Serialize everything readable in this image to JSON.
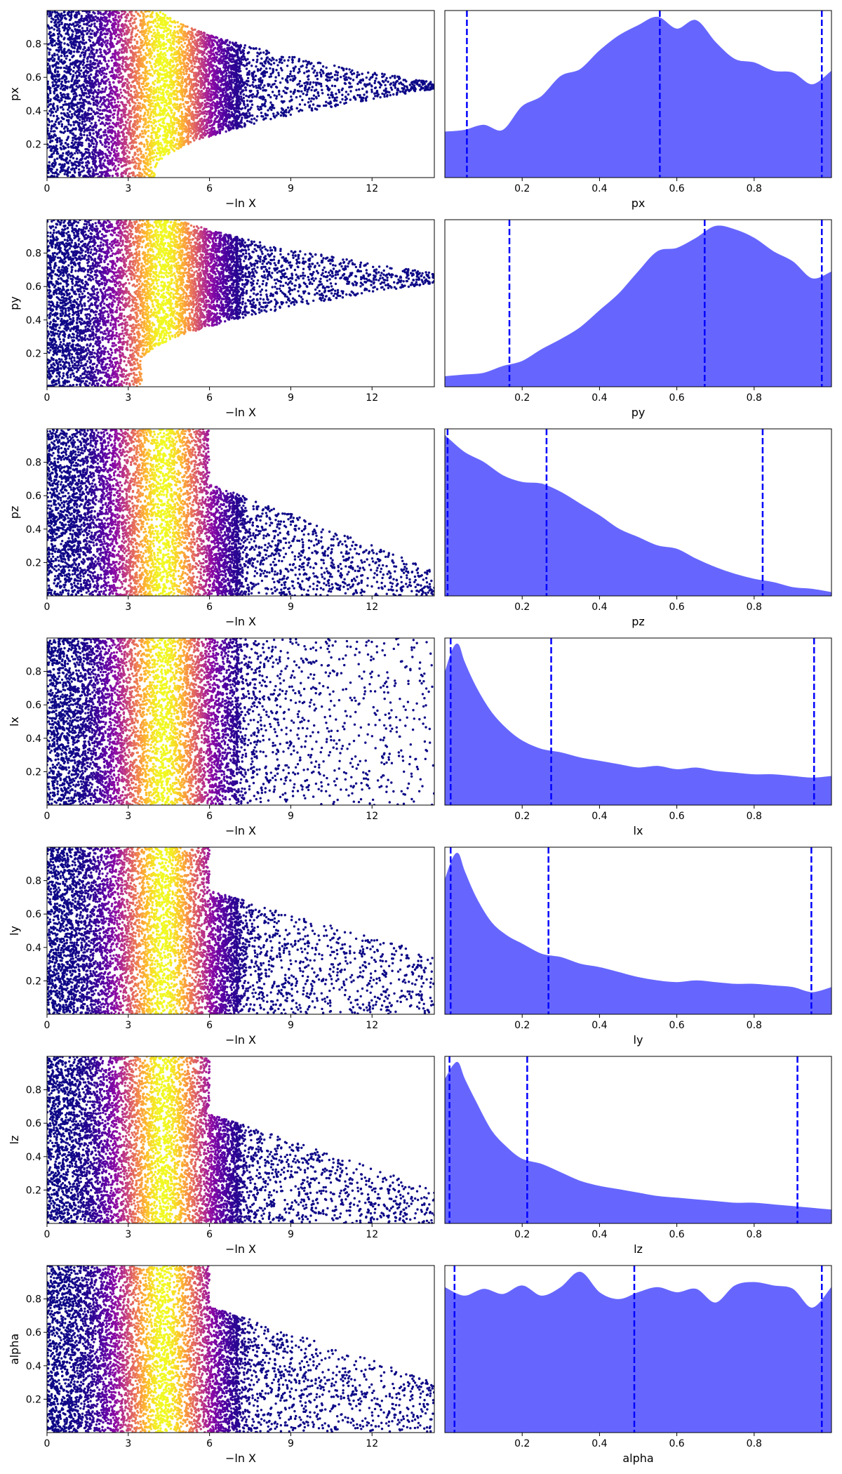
{
  "chart_data": [
    {
      "type": "scatter",
      "param": "px",
      "xlabel": "−ln X",
      "ylabel": "px",
      "xlim": [
        0,
        14.3
      ],
      "ylim": [
        0,
        1
      ],
      "xticks": [
        0,
        3,
        6,
        9,
        12
      ],
      "xtick_labels": [
        "0",
        "3",
        "6",
        "9",
        "12"
      ],
      "yticks": [
        0.2,
        0.4,
        0.6,
        0.8
      ],
      "ytick_labels": [
        "0.2",
        "0.4",
        "0.6",
        "0.8"
      ],
      "colormap": "plasma",
      "approx_point_count": 7000,
      "peak_color_at_x": 4.3,
      "x_extent_max": 14.3,
      "contraction": {
        "start_x": 4.0,
        "center": 0.55,
        "end_halfwidth": 0.02
      }
    },
    {
      "type": "area",
      "param": "px",
      "xlabel": "px",
      "ylabel": "",
      "xlim": [
        0,
        1
      ],
      "xticks": [
        0.2,
        0.4,
        0.6,
        0.8
      ],
      "xtick_labels": [
        "0.2",
        "0.4",
        "0.6",
        "0.8"
      ],
      "x": [
        0,
        0.05,
        0.1,
        0.15,
        0.2,
        0.25,
        0.3,
        0.35,
        0.4,
        0.45,
        0.5,
        0.55,
        0.6,
        0.65,
        0.7,
        0.75,
        0.8,
        0.85,
        0.9,
        0.95,
        1.0
      ],
      "density": [
        0.27,
        0.28,
        0.31,
        0.28,
        0.42,
        0.48,
        0.6,
        0.64,
        0.75,
        0.84,
        0.9,
        0.95,
        0.88,
        0.93,
        0.8,
        0.7,
        0.68,
        0.63,
        0.62,
        0.55,
        0.63
      ],
      "quantiles": [
        0.057,
        0.556,
        0.975
      ],
      "fill_color": "#6666ff",
      "line_color": "#0000ff"
    },
    {
      "type": "scatter",
      "param": "py",
      "xlabel": "−ln X",
      "ylabel": "py",
      "xlim": [
        0,
        14.3
      ],
      "ylim": [
        0,
        1
      ],
      "xticks": [
        0,
        3,
        6,
        9,
        12
      ],
      "xtick_labels": [
        "0",
        "3",
        "6",
        "9",
        "12"
      ],
      "yticks": [
        0.2,
        0.4,
        0.6,
        0.8
      ],
      "ytick_labels": [
        "0.2",
        "0.4",
        "0.6",
        "0.8"
      ],
      "colormap": "plasma",
      "approx_point_count": 7000,
      "peak_color_at_x": 4.3,
      "x_extent_max": 14.3,
      "contraction": {
        "start_x": 3.5,
        "center": 0.65,
        "end_halfwidth": 0.03
      }
    },
    {
      "type": "area",
      "param": "py",
      "xlabel": "py",
      "ylabel": "",
      "xlim": [
        0,
        1
      ],
      "xticks": [
        0.2,
        0.4,
        0.6,
        0.8
      ],
      "xtick_labels": [
        "0.2",
        "0.4",
        "0.6",
        "0.8"
      ],
      "x": [
        0,
        0.05,
        0.1,
        0.15,
        0.2,
        0.25,
        0.3,
        0.35,
        0.4,
        0.45,
        0.5,
        0.55,
        0.6,
        0.65,
        0.7,
        0.75,
        0.8,
        0.85,
        0.9,
        0.95,
        1.0
      ],
      "density": [
        0.06,
        0.07,
        0.08,
        0.12,
        0.15,
        0.22,
        0.28,
        0.35,
        0.45,
        0.55,
        0.68,
        0.8,
        0.82,
        0.88,
        0.95,
        0.93,
        0.88,
        0.8,
        0.74,
        0.64,
        0.68
      ],
      "quantiles": [
        0.167,
        0.672,
        0.975
      ],
      "fill_color": "#6666ff",
      "line_color": "#0000ff"
    },
    {
      "type": "scatter",
      "param": "pz",
      "xlabel": "−ln X",
      "ylabel": "pz",
      "xlim": [
        0,
        14.3
      ],
      "ylim": [
        0,
        1
      ],
      "xticks": [
        0,
        3,
        6,
        9,
        12
      ],
      "xtick_labels": [
        "0",
        "3",
        "6",
        "9",
        "12"
      ],
      "yticks": [
        0.2,
        0.4,
        0.6,
        0.8
      ],
      "ytick_labels": [
        "0.2",
        "0.4",
        "0.6",
        "0.8"
      ],
      "colormap": "plasma",
      "approx_point_count": 7000,
      "peak_color_at_x": 4.3,
      "x_extent_max": 14.3,
      "sparse_y_max_start": 0.95,
      "sparse_y_max_end": 0.15
    },
    {
      "type": "area",
      "param": "pz",
      "xlabel": "pz",
      "ylabel": "",
      "xlim": [
        0,
        1
      ],
      "xticks": [
        0.2,
        0.4,
        0.6,
        0.8
      ],
      "xtick_labels": [
        "0.2",
        "0.4",
        "0.6",
        "0.8"
      ],
      "x": [
        0,
        0.05,
        0.1,
        0.15,
        0.2,
        0.25,
        0.3,
        0.35,
        0.4,
        0.45,
        0.5,
        0.55,
        0.6,
        0.65,
        0.7,
        0.75,
        0.8,
        0.85,
        0.9,
        0.95,
        1.0
      ],
      "density": [
        0.96,
        0.86,
        0.8,
        0.72,
        0.68,
        0.67,
        0.62,
        0.55,
        0.48,
        0.4,
        0.35,
        0.3,
        0.28,
        0.22,
        0.17,
        0.13,
        0.1,
        0.08,
        0.05,
        0.04,
        0.02
      ],
      "quantiles": [
        0.007,
        0.263,
        0.822
      ],
      "fill_color": "#6666ff",
      "line_color": "#0000ff"
    },
    {
      "type": "scatter",
      "param": "lx",
      "xlabel": "−ln X",
      "ylabel": "lx",
      "xlim": [
        0,
        14.3
      ],
      "ylim": [
        0,
        1
      ],
      "xticks": [
        0,
        3,
        6,
        9,
        12
      ],
      "xtick_labels": [
        "0",
        "3",
        "6",
        "9",
        "12"
      ],
      "yticks": [
        0.2,
        0.4,
        0.6,
        0.8
      ],
      "ytick_labels": [
        "0.2",
        "0.4",
        "0.6",
        "0.8"
      ],
      "colormap": "plasma",
      "approx_point_count": 7000,
      "peak_color_at_x": 4.3,
      "x_extent_max": 14.3,
      "sparse_y_max_start": 1.0,
      "sparse_y_max_end": 1.0
    },
    {
      "type": "area",
      "param": "lx",
      "xlabel": "lx",
      "ylabel": "",
      "xlim": [
        0,
        1
      ],
      "xticks": [
        0.2,
        0.4,
        0.6,
        0.8
      ],
      "xtick_labels": [
        "0.2",
        "0.4",
        "0.6",
        "0.8"
      ],
      "x": [
        0,
        0.02,
        0.035,
        0.05,
        0.08,
        0.12,
        0.16,
        0.2,
        0.25,
        0.3,
        0.35,
        0.4,
        0.45,
        0.5,
        0.55,
        0.6,
        0.65,
        0.7,
        0.75,
        0.8,
        0.85,
        0.9,
        0.95,
        1.0
      ],
      "density": [
        0.78,
        0.92,
        0.95,
        0.85,
        0.7,
        0.55,
        0.45,
        0.38,
        0.33,
        0.31,
        0.28,
        0.26,
        0.24,
        0.22,
        0.23,
        0.21,
        0.22,
        0.2,
        0.19,
        0.18,
        0.18,
        0.17,
        0.16,
        0.17
      ],
      "quantiles": [
        0.015,
        0.275,
        0.955
      ],
      "fill_color": "#6666ff",
      "line_color": "#0000ff"
    },
    {
      "type": "scatter",
      "param": "ly",
      "xlabel": "−ln X",
      "ylabel": "ly",
      "xlim": [
        0,
        14.3
      ],
      "ylim": [
        0,
        1
      ],
      "xticks": [
        0,
        3,
        6,
        9,
        12
      ],
      "xtick_labels": [
        "0",
        "3",
        "6",
        "9",
        "12"
      ],
      "yticks": [
        0.2,
        0.4,
        0.6,
        0.8
      ],
      "ytick_labels": [
        "0.2",
        "0.4",
        "0.6",
        "0.8"
      ],
      "colormap": "plasma",
      "approx_point_count": 7000,
      "peak_color_at_x": 4.3,
      "x_extent_max": 14.3,
      "sparse_y_max_start": 0.95,
      "sparse_y_max_end": 0.35
    },
    {
      "type": "area",
      "param": "ly",
      "xlabel": "ly",
      "ylabel": "",
      "xlim": [
        0,
        1
      ],
      "xticks": [
        0.2,
        0.4,
        0.6,
        0.8
      ],
      "xtick_labels": [
        "0.2",
        "0.4",
        "0.6",
        "0.8"
      ],
      "x": [
        0,
        0.02,
        0.035,
        0.05,
        0.08,
        0.12,
        0.16,
        0.2,
        0.25,
        0.3,
        0.35,
        0.4,
        0.45,
        0.5,
        0.55,
        0.6,
        0.65,
        0.7,
        0.75,
        0.8,
        0.85,
        0.9,
        0.95,
        1.0
      ],
      "density": [
        0.8,
        0.93,
        0.96,
        0.86,
        0.7,
        0.55,
        0.47,
        0.42,
        0.36,
        0.34,
        0.3,
        0.28,
        0.25,
        0.22,
        0.2,
        0.19,
        0.2,
        0.19,
        0.18,
        0.18,
        0.17,
        0.16,
        0.13,
        0.16
      ],
      "quantiles": [
        0.015,
        0.268,
        0.948
      ],
      "fill_color": "#6666ff",
      "line_color": "#0000ff"
    },
    {
      "type": "scatter",
      "param": "lz",
      "xlabel": "−ln X",
      "ylabel": "lz",
      "xlim": [
        0,
        14.3
      ],
      "ylim": [
        0,
        1
      ],
      "xticks": [
        0,
        3,
        6,
        9,
        12
      ],
      "xtick_labels": [
        "0",
        "3",
        "6",
        "9",
        "12"
      ],
      "yticks": [
        0.2,
        0.4,
        0.6,
        0.8
      ],
      "ytick_labels": [
        "0.2",
        "0.4",
        "0.6",
        "0.8"
      ],
      "colormap": "plasma",
      "approx_point_count": 7000,
      "peak_color_at_x": 4.3,
      "x_extent_max": 14.3,
      "sparse_y_max_start": 0.9,
      "sparse_y_max_end": 0.2
    },
    {
      "type": "area",
      "param": "lz",
      "xlabel": "lz",
      "ylabel": "",
      "xlim": [
        0,
        1
      ],
      "xticks": [
        0.2,
        0.4,
        0.6,
        0.8
      ],
      "xtick_labels": [
        "0.2",
        "0.4",
        "0.6",
        "0.8"
      ],
      "x": [
        0,
        0.02,
        0.035,
        0.05,
        0.08,
        0.12,
        0.16,
        0.2,
        0.25,
        0.3,
        0.35,
        0.4,
        0.45,
        0.5,
        0.55,
        0.6,
        0.65,
        0.7,
        0.75,
        0.8,
        0.85,
        0.9,
        0.95,
        1.0
      ],
      "density": [
        0.85,
        0.93,
        0.95,
        0.86,
        0.72,
        0.55,
        0.45,
        0.38,
        0.35,
        0.3,
        0.25,
        0.22,
        0.2,
        0.18,
        0.16,
        0.15,
        0.14,
        0.13,
        0.12,
        0.12,
        0.11,
        0.1,
        0.09,
        0.08
      ],
      "quantiles": [
        0.012,
        0.213,
        0.912
      ],
      "fill_color": "#6666ff",
      "line_color": "#0000ff"
    },
    {
      "type": "scatter",
      "param": "alpha",
      "xlabel": "−ln X",
      "ylabel": "alpha",
      "xlim": [
        0,
        14.3
      ],
      "ylim": [
        0,
        1
      ],
      "xticks": [
        0,
        3,
        6,
        9,
        12
      ],
      "xtick_labels": [
        "0",
        "3",
        "6",
        "9",
        "12"
      ],
      "yticks": [
        0.2,
        0.4,
        0.6,
        0.8
      ],
      "ytick_labels": [
        "0.2",
        "0.4",
        "0.6",
        "0.8"
      ],
      "colormap": "plasma",
      "approx_point_count": 7000,
      "peak_color_at_x": 4.3,
      "x_extent_max": 14.3,
      "sparse_y_max_start": 1.0,
      "sparse_y_max_end": 0.3
    },
    {
      "type": "area",
      "param": "alpha",
      "xlabel": "alpha",
      "ylabel": "",
      "xlim": [
        0,
        1
      ],
      "xticks": [
        0.2,
        0.4,
        0.6,
        0.8
      ],
      "xtick_labels": [
        "0.2",
        "0.4",
        "0.6",
        "0.8"
      ],
      "x": [
        0,
        0.05,
        0.1,
        0.15,
        0.2,
        0.25,
        0.3,
        0.35,
        0.4,
        0.45,
        0.5,
        0.55,
        0.6,
        0.65,
        0.7,
        0.75,
        0.8,
        0.85,
        0.9,
        0.95,
        1.0
      ],
      "density": [
        0.85,
        0.8,
        0.84,
        0.81,
        0.86,
        0.8,
        0.85,
        0.94,
        0.82,
        0.78,
        0.82,
        0.85,
        0.82,
        0.84,
        0.76,
        0.86,
        0.88,
        0.86,
        0.84,
        0.73,
        0.85
      ],
      "quantiles": [
        0.025,
        0.49,
        0.975
      ],
      "fill_color": "#6666ff",
      "line_color": "#0000ff"
    }
  ]
}
